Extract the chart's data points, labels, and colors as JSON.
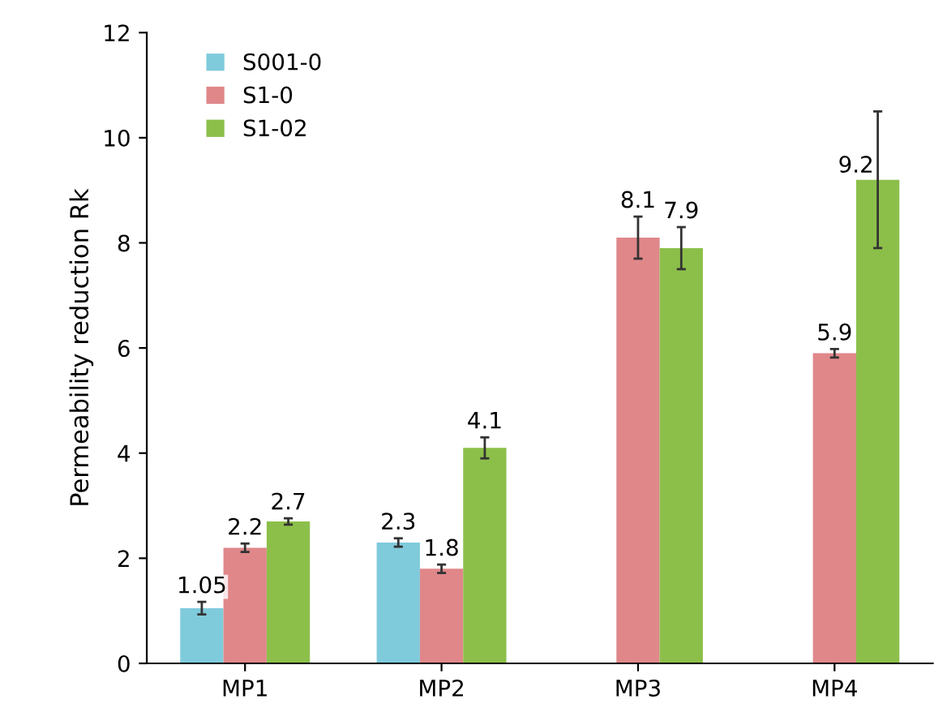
{
  "chart_data": {
    "type": "bar",
    "ylabel": "Permeability reduction Rk",
    "categories": [
      "MP1",
      "MP2",
      "MP3",
      "MP4"
    ],
    "series": [
      {
        "name": "S001-0",
        "color": "#7fcbdc",
        "values": [
          1.05,
          2.3,
          null,
          null
        ],
        "errors": [
          0.12,
          0.08,
          null,
          null
        ]
      },
      {
        "name": "S1-0",
        "color": "#e0878a",
        "values": [
          2.2,
          1.8,
          8.1,
          5.9
        ],
        "errors": [
          0.08,
          0.08,
          0.4,
          0.08
        ]
      },
      {
        "name": "S1-02",
        "color": "#8cbf4a",
        "values": [
          2.7,
          4.1,
          7.9,
          9.2
        ],
        "errors": [
          0.06,
          0.2,
          0.4,
          1.3
        ]
      }
    ],
    "ylim": [
      0,
      12
    ],
    "yticks": [
      0,
      2,
      4,
      6,
      8,
      10,
      12
    ],
    "data_labels": true,
    "legend": "top left",
    "grid": false
  }
}
